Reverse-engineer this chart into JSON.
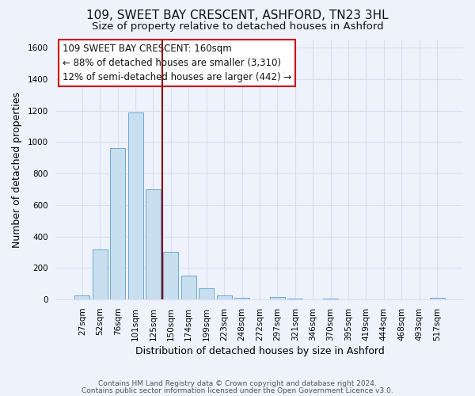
{
  "title": "109, SWEET BAY CRESCENT, ASHFORD, TN23 3HL",
  "subtitle": "Size of property relative to detached houses in Ashford",
  "xlabel": "Distribution of detached houses by size in Ashford",
  "ylabel": "Number of detached properties",
  "bar_color": "#c8dff0",
  "bar_edge_color": "#6ea8d0",
  "background_color": "#eef2fb",
  "grid_color": "#d8dff0",
  "categories": [
    "27sqm",
    "52sqm",
    "76sqm",
    "101sqm",
    "125sqm",
    "150sqm",
    "174sqm",
    "199sqm",
    "223sqm",
    "248sqm",
    "272sqm",
    "297sqm",
    "321sqm",
    "346sqm",
    "370sqm",
    "395sqm",
    "419sqm",
    "444sqm",
    "468sqm",
    "493sqm",
    "517sqm"
  ],
  "values": [
    25,
    320,
    960,
    1185,
    700,
    305,
    150,
    70,
    25,
    10,
    0,
    15,
    5,
    0,
    5,
    0,
    0,
    0,
    0,
    0,
    10
  ],
  "ylim": [
    0,
    1650
  ],
  "yticks": [
    0,
    200,
    400,
    600,
    800,
    1000,
    1200,
    1400,
    1600
  ],
  "property_line_x": 4.5,
  "property_line_color": "#8b0000",
  "annotation_line1": "109 SWEET BAY CRESCENT: 160sqm",
  "annotation_line2": "← 88% of detached houses are smaller (3,310)",
  "annotation_line3": "12% of semi-detached houses are larger (442) →",
  "footer_line1": "Contains HM Land Registry data © Crown copyright and database right 2024.",
  "footer_line2": "Contains public sector information licensed under the Open Government Licence v3.0.",
  "title_fontsize": 11,
  "subtitle_fontsize": 9.5,
  "axis_label_fontsize": 9,
  "tick_fontsize": 7.5,
  "annotation_fontsize": 8.5,
  "footer_fontsize": 6.5
}
